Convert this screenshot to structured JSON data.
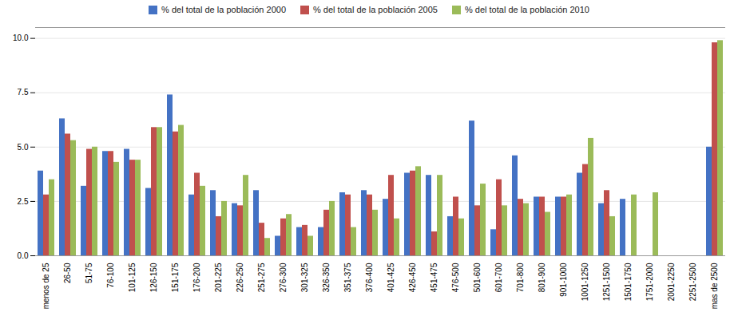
{
  "chart_data": {
    "type": "bar",
    "categories": [
      "menos de 25",
      "26-50",
      "51-75",
      "76-100",
      "101-125",
      "126-150",
      "151-175",
      "176-200",
      "201-225",
      "226-250",
      "251-275",
      "276-300",
      "301-325",
      "326-350",
      "351-375",
      "376-400",
      "401-425",
      "426-450",
      "451-475",
      "476-500",
      "501-600",
      "601-700",
      "701-800",
      "801-900",
      "901-1000",
      "1001-1250",
      "1251-1500",
      "1501-1750",
      "1751-2000",
      "2001-2250",
      "2251-2500",
      "mas de 2500"
    ],
    "series": [
      {
        "name": "% del total de la población 2000",
        "color": "#4472C4",
        "values": [
          3.9,
          6.3,
          3.2,
          4.8,
          4.9,
          3.1,
          7.4,
          2.8,
          3.0,
          2.4,
          3.0,
          0.9,
          1.3,
          1.3,
          2.9,
          3.0,
          2.6,
          3.8,
          3.7,
          1.8,
          6.2,
          1.2,
          4.6,
          2.7,
          2.7,
          3.8,
          2.4,
          2.6,
          0.0,
          0.0,
          0.0,
          5.0
        ]
      },
      {
        "name": "% del total de la población 2005",
        "color": "#C0504D",
        "values": [
          2.8,
          5.6,
          4.9,
          4.8,
          4.4,
          5.9,
          5.7,
          3.8,
          1.8,
          2.3,
          1.5,
          1.7,
          1.4,
          2.1,
          2.8,
          2.8,
          3.7,
          3.9,
          1.1,
          2.7,
          2.3,
          3.5,
          2.6,
          2.7,
          2.7,
          4.2,
          3.0,
          0.0,
          0.0,
          0.0,
          0.0,
          9.8
        ]
      },
      {
        "name": "% del total de la población 2010",
        "color": "#9BBB59",
        "values": [
          3.5,
          5.3,
          5.0,
          4.3,
          4.4,
          5.9,
          6.0,
          3.2,
          2.5,
          3.7,
          0.8,
          1.9,
          0.9,
          2.5,
          1.3,
          2.1,
          1.7,
          4.1,
          3.7,
          1.7,
          3.3,
          2.3,
          2.4,
          2.0,
          2.8,
          5.4,
          1.8,
          2.8,
          2.9,
          0.0,
          0.0,
          9.9
        ]
      }
    ],
    "ylim": [
      0,
      10.5
    ],
    "yticks": [
      {
        "value": 0,
        "label": "0.0"
      },
      2.5,
      {
        "value": 5,
        "label": "5.0"
      },
      7.5,
      {
        "value": 10,
        "label": "10.0"
      }
    ],
    "grid": true,
    "legend": "upper center"
  }
}
